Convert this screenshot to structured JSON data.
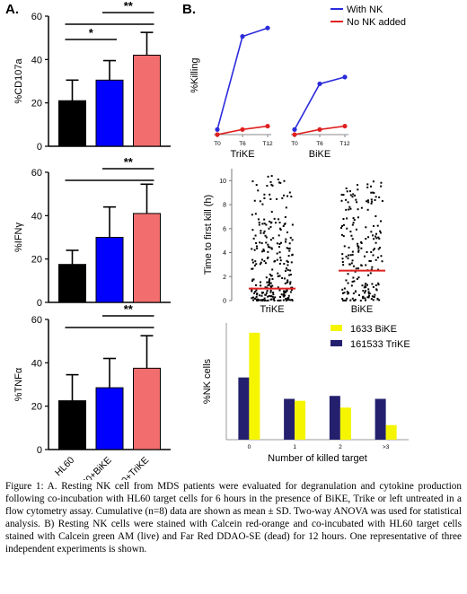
{
  "panel_a_label": "A.",
  "panel_b_label": "B.",
  "caption": "Figure 1: A. Resting NK cell from MDS patients were evaluated for degranulation and cytokine production following co-incubation with HL60 target cells for 6 hours in the presence of BiKE, Trike or left untreated in a flow cytometry assay. Cumulative (n=8) data are shown as mean ± SD. Two-way ANOVA was used for statistical analysis. B) Resting NK cells were stained with Calcein red-orange and co-incubated with HL60 target cells stained with Calcein green AM (live) and Far Red DDAO-SE (dead) for 12 hours. One representative of three independent experiments is shown.",
  "colors": {
    "hl60": "#000000",
    "bike": "#0000ff",
    "trike": "#f26d6d",
    "with_nk": "#2b2bdc",
    "no_nk": "#e02020",
    "median": "#e02020",
    "bike_bar": "#f5f500",
    "trike_bar": "#24206e"
  },
  "chart_data": [
    {
      "id": "cd107a",
      "type": "bar",
      "title": "",
      "xlabel": "",
      "ylabel": "%CD107a",
      "ylim": [
        0,
        60
      ],
      "yticks": [
        "0",
        "20",
        "40",
        "60"
      ],
      "categories": [
        "HL60",
        "HL60+BiKE",
        "HL60+TriKE"
      ],
      "values": [
        21,
        30.5,
        42
      ],
      "errors": [
        9.5,
        9,
        10.5
      ],
      "significance": [
        {
          "from": 0,
          "to": 1,
          "label": "*"
        },
        {
          "from": 0,
          "to": 2,
          "label": ""
        },
        {
          "from": 1,
          "to": 2,
          "label": "**"
        }
      ]
    },
    {
      "id": "ifng",
      "type": "bar",
      "title": "",
      "xlabel": "",
      "ylabel": "%IFNγ",
      "ylim": [
        0,
        60
      ],
      "yticks": [
        "0",
        "20",
        "40",
        "60"
      ],
      "categories": [
        "HL60",
        "HL60+BiKE",
        "HL60+TriKE"
      ],
      "values": [
        17.5,
        30,
        41
      ],
      "errors": [
        6.5,
        14,
        13.5
      ],
      "significance": [
        {
          "from": 0,
          "to": 2,
          "label": ""
        },
        {
          "from": 1,
          "to": 2,
          "label": "**"
        }
      ]
    },
    {
      "id": "tnfa",
      "type": "bar",
      "title": "",
      "xlabel": "",
      "ylabel": "%TNFα",
      "ylim": [
        0,
        60
      ],
      "yticks": [
        "0",
        "20",
        "40",
        "60"
      ],
      "categories": [
        "HL60",
        "HL60+BiKE",
        "HL60+TriKE"
      ],
      "values": [
        22.5,
        28.5,
        37.5
      ],
      "errors": [
        12,
        13.5,
        15
      ],
      "significance": [
        {
          "from": 0,
          "to": 2,
          "label": ""
        },
        {
          "from": 1,
          "to": 2,
          "label": "**"
        }
      ]
    },
    {
      "id": "killing",
      "type": "line",
      "title": "",
      "xlabel": "",
      "ylabel": "%Killing",
      "groups": [
        "TriKE",
        "BiKE"
      ],
      "x": [
        "T0",
        "T6",
        "T12"
      ],
      "series": [
        {
          "name": "With NK",
          "values": {
            "TriKE": [
              3,
              58,
              63
            ],
            "BiKE": [
              3,
              30,
              34
            ]
          }
        },
        {
          "name": "No NK added",
          "values": {
            "TriKE": [
              0,
              3,
              5
            ],
            "BiKE": [
              0,
              3,
              5
            ]
          }
        }
      ],
      "legend": "top-right"
    },
    {
      "id": "time_to_kill",
      "type": "scatter",
      "title": "",
      "xlabel": "",
      "ylabel": "Time to first kill (h)",
      "ylim": [
        0,
        11
      ],
      "yticks": [
        "0",
        "2",
        "4",
        "6",
        "8",
        "10"
      ],
      "categories": [
        "TriKE",
        "BiKE"
      ],
      "medians": [
        1.0,
        2.5
      ],
      "n_points": [
        260,
        200
      ]
    },
    {
      "id": "nk_cells",
      "type": "bar",
      "title": "",
      "xlabel": "Number of killed target",
      "ylabel": "%NK cells",
      "categories": [
        "0",
        "1",
        "2",
        ">3"
      ],
      "series": [
        {
          "name": "161533 TriKE",
          "values": [
            32,
            21,
            22.5,
            21
          ]
        },
        {
          "name": "1633 BiKE",
          "values": [
            55,
            20,
            16.5,
            7.5
          ]
        }
      ],
      "legend": "top-right"
    }
  ]
}
